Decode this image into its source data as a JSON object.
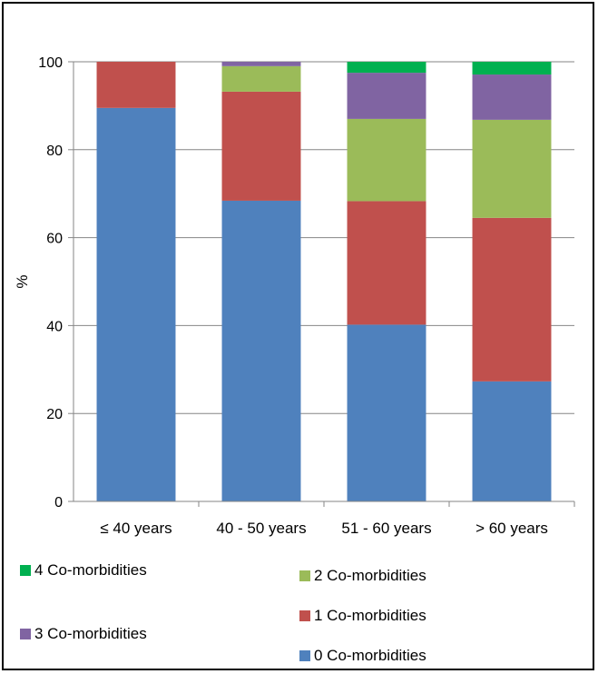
{
  "chart_data": {
    "type": "bar",
    "stacked": true,
    "categories": [
      "≤ 40 years",
      "40 - 50 years",
      "51 - 60 years",
      "> 60 years"
    ],
    "ylabel": "%",
    "ylim": [
      0,
      100
    ],
    "yticks": [
      "0",
      "20",
      "40",
      "60",
      "80",
      "100"
    ],
    "grid": true,
    "series": [
      {
        "name": "0  Co-morbidities",
        "color": "#4F81BD",
        "values": [
          89.5,
          68.4,
          40.2,
          27.3
        ]
      },
      {
        "name": "1  Co-morbidities",
        "color": "#C0504D",
        "values": [
          10.5,
          24.8,
          28.1,
          37.2
        ]
      },
      {
        "name": "2  Co-morbidities",
        "color": "#9BBB59",
        "values": [
          0,
          5.8,
          18.7,
          22.3
        ]
      },
      {
        "name": "3  Co-morbidities",
        "color": "#8064A2",
        "values": [
          0,
          1.0,
          10.5,
          10.3
        ]
      },
      {
        "name": "4  Co-morbidities",
        "color": "#00B050",
        "values": [
          0,
          0,
          2.5,
          2.9
        ]
      }
    ]
  }
}
